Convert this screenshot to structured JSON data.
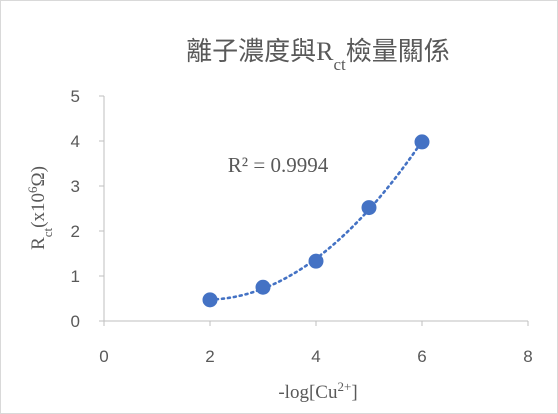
{
  "chart_data": {
    "type": "scatter",
    "title": {
      "main": "離子濃度與R",
      "sub": "ct",
      "rest": "檢量關係"
    },
    "xlabel": {
      "main": "-log[Cu",
      "sup": "2+",
      "rest": "]"
    },
    "ylabel": {
      "main": "R",
      "sub": "ct",
      "mid": "(x10",
      "sup": "6",
      "rest": "Ω)"
    },
    "xlim": [
      0,
      8
    ],
    "ylim": [
      0,
      5
    ],
    "xticks": [
      0,
      2,
      4,
      6,
      8
    ],
    "yticks": [
      0,
      1,
      2,
      3,
      4,
      5
    ],
    "x": [
      2,
      3,
      4,
      5,
      6
    ],
    "y": [
      0.47,
      0.75,
      1.33,
      2.52,
      3.98
    ],
    "trendline": {
      "type": "polynomial",
      "order": 2,
      "r_squared_label": "R² = 0.9994"
    },
    "grid": false,
    "legend": "none",
    "colors": {
      "series": "#4472c4",
      "axis": "#bfbfbf",
      "text": "#595959",
      "frame": "#d9d9d9"
    }
  }
}
